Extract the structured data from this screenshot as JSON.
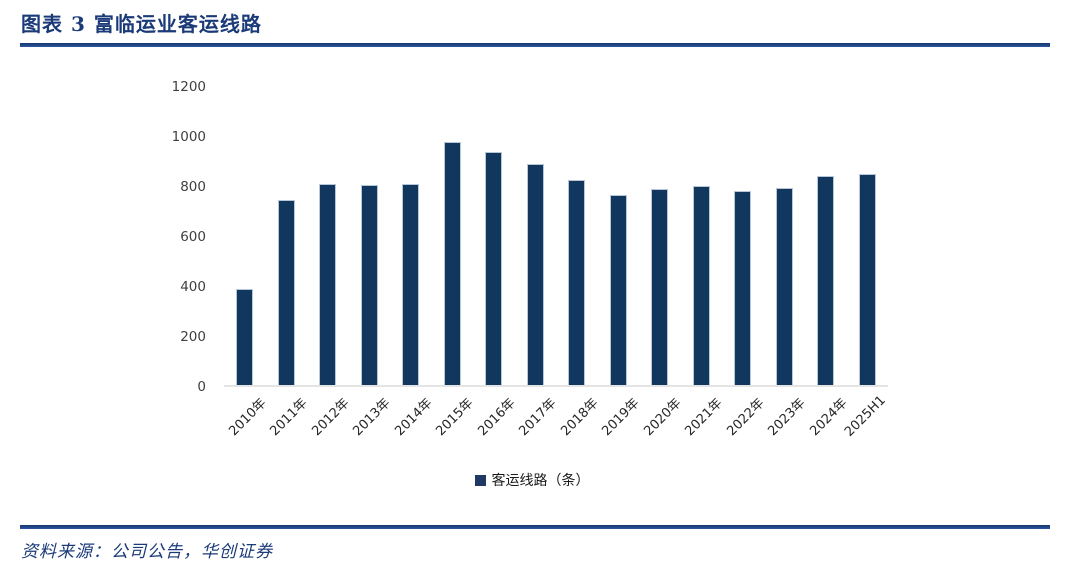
{
  "figure": {
    "title": "图表 3  富临运业客运线路",
    "source": "资料来源：公司公告，华创证券"
  },
  "chart_data": {
    "type": "bar",
    "title": "图表 3  富临运业客运线路",
    "categories": [
      "2010年",
      "2011年",
      "2012年",
      "2013年",
      "2014年",
      "2015年",
      "2016年",
      "2017年",
      "2018年",
      "2019年",
      "2020年",
      "2021年",
      "2022年",
      "2023年",
      "2024年",
      "2025H1"
    ],
    "values": [
      385,
      745,
      810,
      805,
      810,
      980,
      937,
      890,
      827,
      766,
      788,
      800,
      781,
      792,
      842,
      848
    ],
    "legend": [
      "客运线路（条）"
    ],
    "legend_position": "bottom",
    "xlabel": "",
    "ylabel": "",
    "ylim": [
      0,
      1200
    ],
    "yticks": [
      0,
      200,
      400,
      600,
      800,
      1000,
      1200
    ],
    "grid": false,
    "bar_color": "#12375e"
  },
  "colors": {
    "accent": "#1a3a78",
    "bar": "#12375e",
    "rule": "#1f4482",
    "axis_text": "#404040",
    "baseline": "#e4e4e4"
  }
}
